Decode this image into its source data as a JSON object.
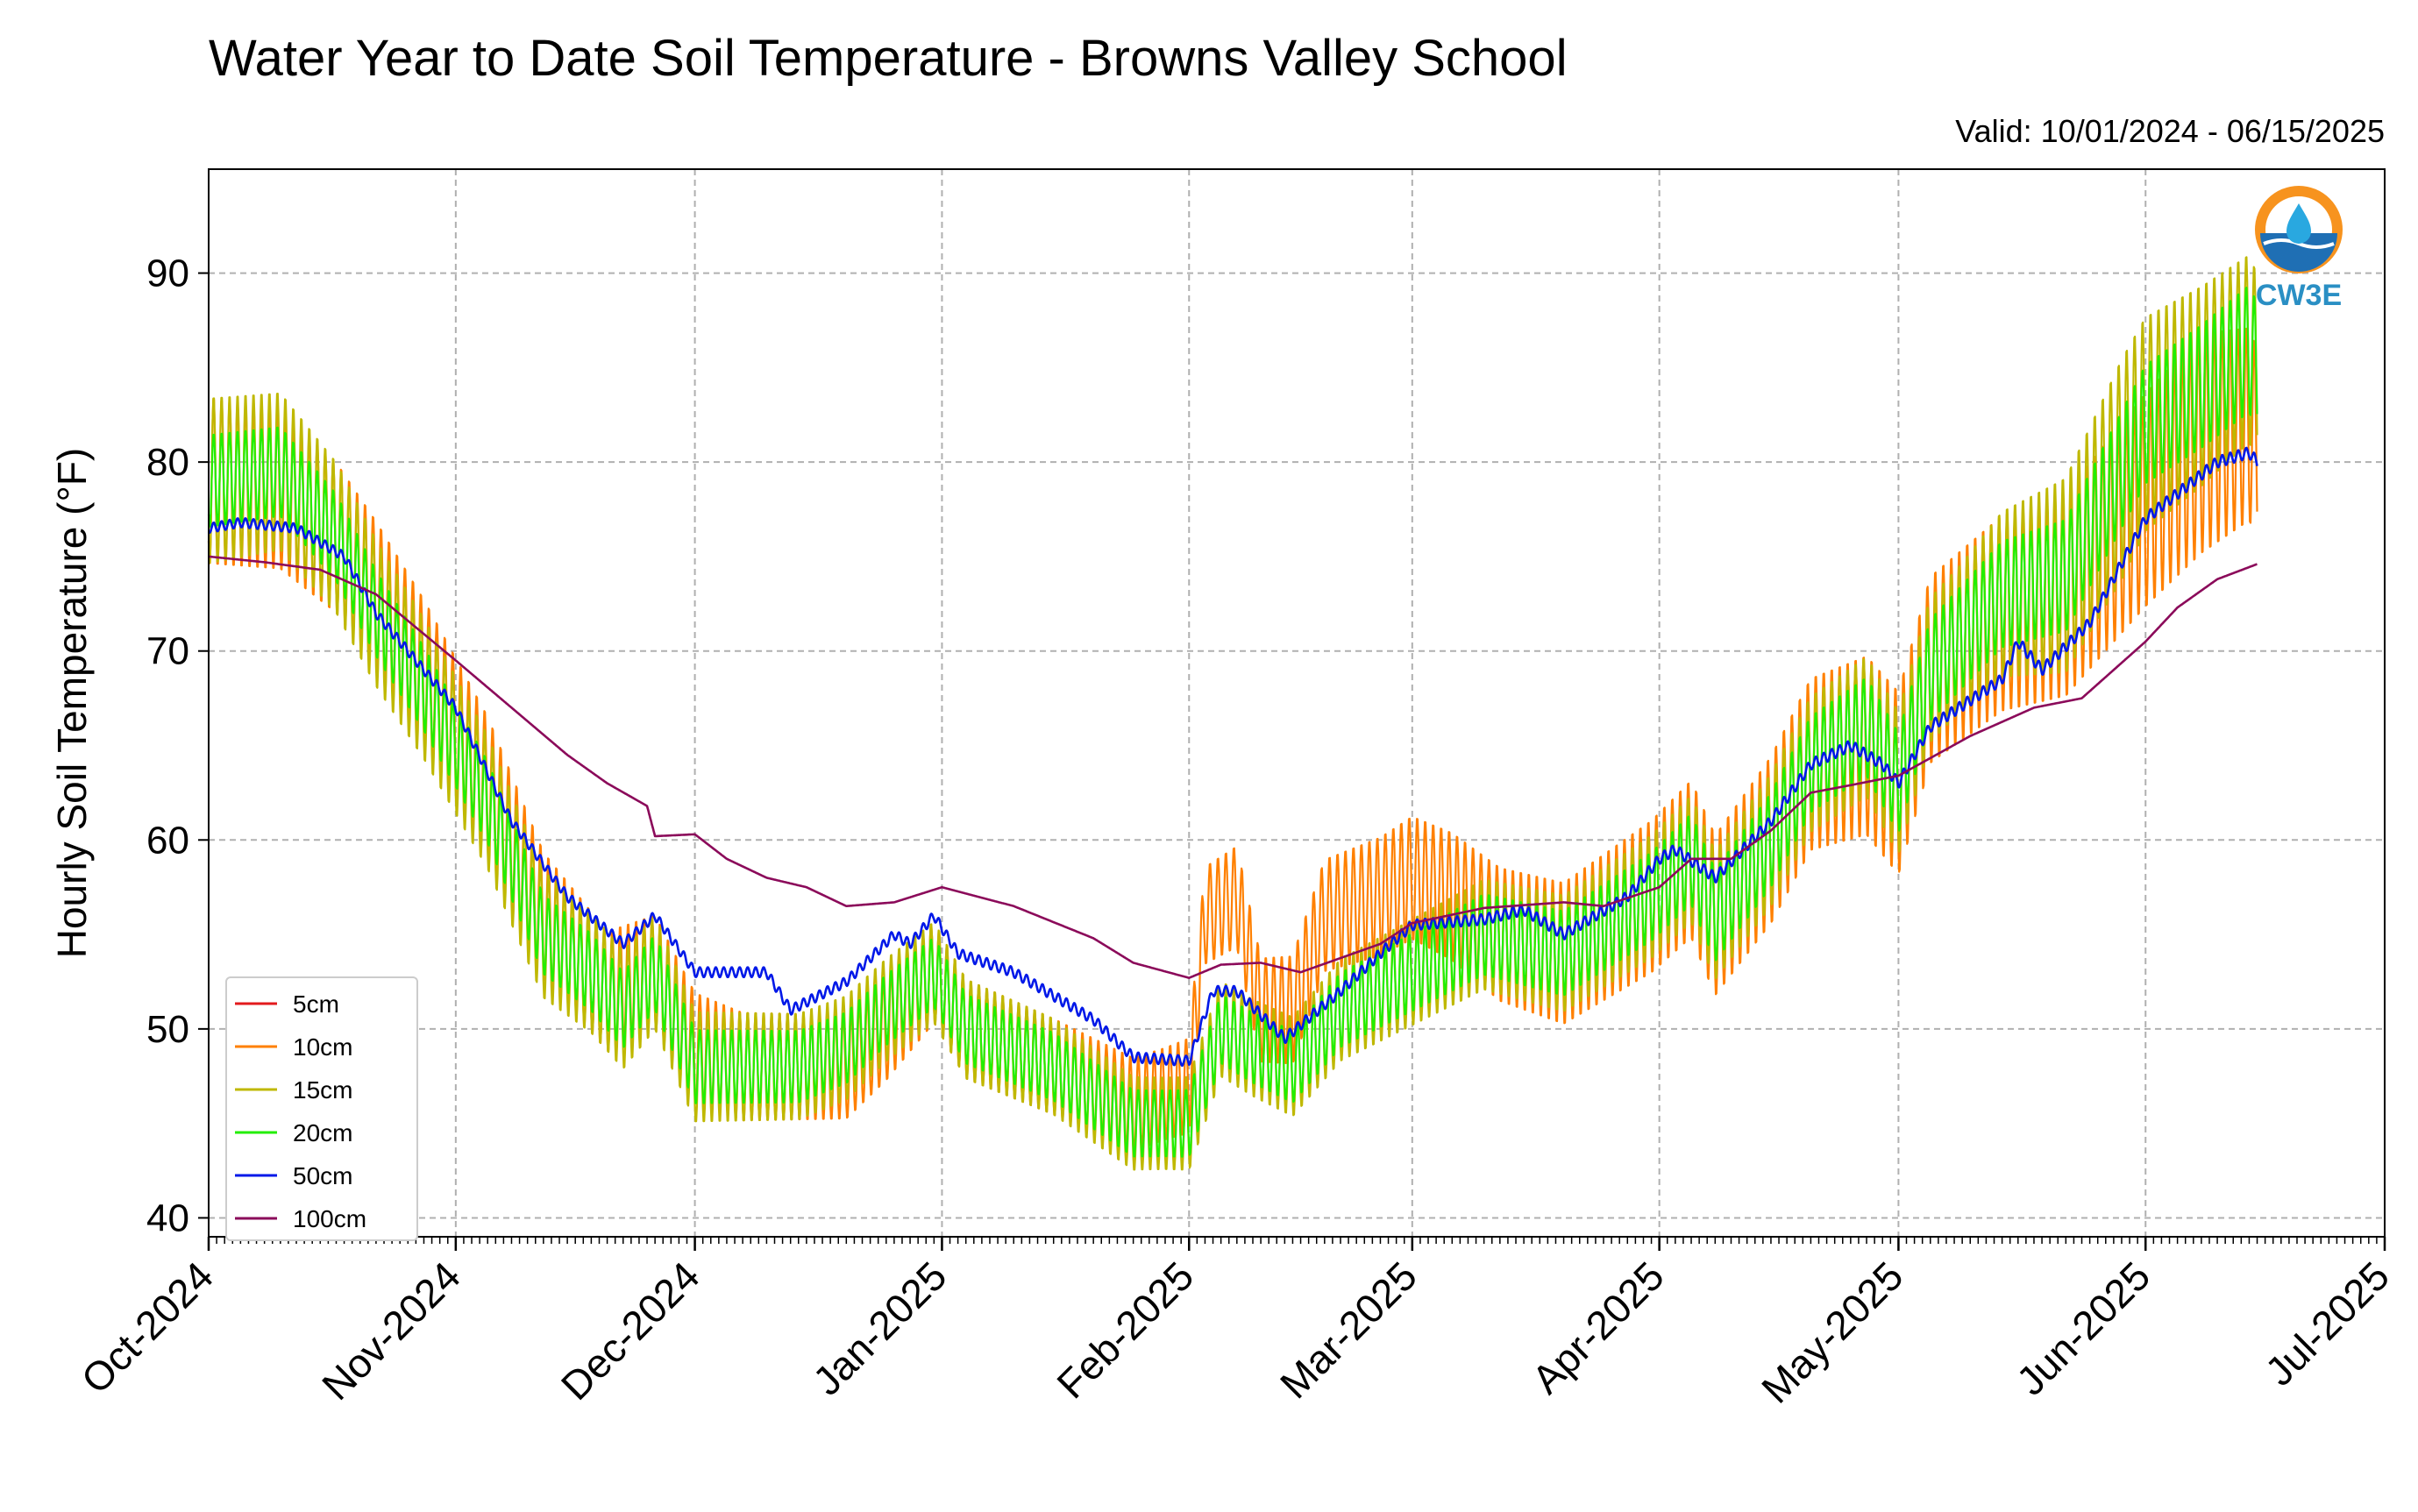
{
  "chart_data": {
    "type": "line",
    "title": "Water Year to Date Soil Temperature - Browns Valley School",
    "subtitle": "Valid: 10/01/2024 - 06/15/2025",
    "ylabel": "Hourly Soil Temperature (°F)",
    "xlabel": "",
    "ylim": [
      39,
      95.5
    ],
    "yticks": [
      40,
      50,
      60,
      70,
      80,
      90
    ],
    "xlim": [
      "2024-10-01",
      "2025-07-01"
    ],
    "xtick_labels": [
      "Oct-2024",
      "Nov-2024",
      "Dec-2024",
      "Jan-2025",
      "Feb-2025",
      "Mar-2025",
      "Apr-2025",
      "May-2025",
      "Jun-2025",
      "Jul-2025"
    ],
    "xtick_dates": [
      "2024-10-01",
      "2024-11-01",
      "2024-12-01",
      "2025-01-01",
      "2025-02-01",
      "2025-03-01",
      "2025-04-01",
      "2025-05-01",
      "2025-06-01",
      "2025-07-01"
    ],
    "grid": true,
    "legend_position": "lower-left",
    "logo_text": "CW3E",
    "series": [
      {
        "name": "5cm",
        "color": "#e31a1c",
        "points": [
          [
            "2024-10-01",
            79
          ]
        ]
      },
      {
        "name": "10cm",
        "color": "#ff8000",
        "amplitude": [
          [
            0,
            4.5
          ],
          [
            60,
            3
          ],
          [
            120,
            2.5
          ],
          [
            250,
            6
          ],
          [
            258,
            5
          ]
        ],
        "points": [
          [
            "2024-10-01",
            79
          ],
          [
            "2024-10-10",
            78.5
          ],
          [
            "2024-10-17",
            76
          ],
          [
            "2024-10-22",
            73
          ],
          [
            "2024-10-28",
            69
          ],
          [
            "2024-11-05",
            63
          ],
          [
            "2024-11-12",
            56
          ],
          [
            "2024-11-20",
            52
          ],
          [
            "2024-11-26",
            53
          ],
          [
            "2024-12-01",
            49
          ],
          [
            "2024-12-07",
            48
          ],
          [
            "2024-12-14",
            48
          ],
          [
            "2024-12-20",
            48
          ],
          [
            "2024-12-25",
            50
          ],
          [
            "2024-12-31",
            53
          ],
          [
            "2025-01-04",
            50
          ],
          [
            "2025-01-15",
            48
          ],
          [
            "2025-01-25",
            46
          ],
          [
            "2025-02-01",
            47
          ],
          [
            "2025-02-03",
            56
          ],
          [
            "2025-02-07",
            57
          ],
          [
            "2025-02-10",
            51
          ],
          [
            "2025-02-14",
            51
          ],
          [
            "2025-02-18",
            56
          ],
          [
            "2025-02-25",
            57
          ],
          [
            "2025-03-01",
            58
          ],
          [
            "2025-03-06",
            57
          ],
          [
            "2025-03-12",
            55
          ],
          [
            "2025-03-20",
            54
          ],
          [
            "2025-03-31",
            57
          ],
          [
            "2025-04-05",
            59
          ],
          [
            "2025-04-08",
            56
          ],
          [
            "2025-04-15",
            60
          ],
          [
            "2025-04-20",
            64
          ],
          [
            "2025-04-27",
            65
          ],
          [
            "2025-05-01",
            63
          ],
          [
            "2025-05-05",
            69
          ],
          [
            "2025-05-14",
            72
          ],
          [
            "2025-05-22",
            73
          ],
          [
            "2025-06-01",
            78
          ],
          [
            "2025-06-08",
            81
          ],
          [
            "2025-06-14",
            82
          ],
          [
            "2025-06-15",
            81
          ]
        ]
      },
      {
        "name": "15cm",
        "color": "#bfb800",
        "amplitude": [
          [
            0,
            4.5
          ],
          [
            60,
            3
          ],
          [
            120,
            2.5
          ],
          [
            160,
            3
          ],
          [
            220,
            4
          ],
          [
            240,
            6
          ],
          [
            258,
            5
          ]
        ],
        "points": [
          [
            "2024-10-01",
            79
          ],
          [
            "2024-10-10",
            79.5
          ],
          [
            "2024-10-17",
            76
          ],
          [
            "2024-10-22",
            72
          ],
          [
            "2024-10-28",
            68
          ],
          [
            "2024-11-05",
            62
          ],
          [
            "2024-11-12",
            55
          ],
          [
            "2024-11-18",
            53
          ],
          [
            "2024-11-22",
            51
          ],
          [
            "2024-11-26",
            53
          ],
          [
            "2024-12-01",
            48
          ],
          [
            "2024-12-07",
            48
          ],
          [
            "2024-12-14",
            48
          ],
          [
            "2024-12-20",
            49
          ],
          [
            "2024-12-25",
            51
          ],
          [
            "2024-12-31",
            53
          ],
          [
            "2025-01-04",
            50
          ],
          [
            "2025-01-15",
            48
          ],
          [
            "2025-01-25",
            45
          ],
          [
            "2025-02-01",
            45
          ],
          [
            "2025-02-05",
            50
          ],
          [
            "2025-02-09",
            49
          ],
          [
            "2025-02-14",
            48
          ],
          [
            "2025-02-20",
            51
          ],
          [
            "2025-03-01",
            53
          ],
          [
            "2025-03-10",
            55
          ],
          [
            "2025-03-20",
            54
          ],
          [
            "2025-03-31",
            57
          ],
          [
            "2025-04-05",
            59
          ],
          [
            "2025-04-08",
            56
          ],
          [
            "2025-04-15",
            60
          ],
          [
            "2025-04-20",
            64
          ],
          [
            "2025-04-27",
            66
          ],
          [
            "2025-05-01",
            63
          ],
          [
            "2025-05-05",
            69
          ],
          [
            "2025-05-14",
            73
          ],
          [
            "2025-05-22",
            74
          ],
          [
            "2025-06-01",
            82
          ],
          [
            "2025-06-08",
            84
          ],
          [
            "2025-06-14",
            86
          ],
          [
            "2025-06-15",
            85
          ]
        ]
      },
      {
        "name": "20cm",
        "color": "#22ee00",
        "amplitude": [
          [
            0,
            2.5
          ],
          [
            60,
            2
          ],
          [
            120,
            1.8
          ],
          [
            220,
            2.8
          ],
          [
            258,
            3.5
          ]
        ],
        "points": [
          [
            "2024-10-01",
            79
          ],
          [
            "2024-10-10",
            79.5
          ],
          [
            "2024-10-17",
            76
          ],
          [
            "2024-10-22",
            72
          ],
          [
            "2024-10-28",
            68
          ],
          [
            "2024-11-05",
            62
          ],
          [
            "2024-11-12",
            55
          ],
          [
            "2024-11-18",
            53
          ],
          [
            "2024-11-22",
            51
          ],
          [
            "2024-11-26",
            53
          ],
          [
            "2024-12-01",
            48
          ],
          [
            "2024-12-07",
            48
          ],
          [
            "2024-12-14",
            48
          ],
          [
            "2024-12-20",
            49
          ],
          [
            "2024-12-25",
            51
          ],
          [
            "2024-12-31",
            53
          ],
          [
            "2025-01-04",
            50
          ],
          [
            "2025-01-15",
            48
          ],
          [
            "2025-01-25",
            45
          ],
          [
            "2025-02-01",
            45
          ],
          [
            "2025-02-05",
            50
          ],
          [
            "2025-02-09",
            49
          ],
          [
            "2025-02-14",
            48
          ],
          [
            "2025-02-20",
            51
          ],
          [
            "2025-03-01",
            53
          ],
          [
            "2025-03-10",
            55
          ],
          [
            "2025-03-20",
            54
          ],
          [
            "2025-03-31",
            57
          ],
          [
            "2025-04-05",
            59
          ],
          [
            "2025-04-08",
            56
          ],
          [
            "2025-04-15",
            60
          ],
          [
            "2025-04-20",
            64
          ],
          [
            "2025-04-27",
            66
          ],
          [
            "2025-05-01",
            63
          ],
          [
            "2025-05-05",
            69
          ],
          [
            "2025-05-14",
            73
          ],
          [
            "2025-05-22",
            74
          ],
          [
            "2025-06-01",
            82
          ],
          [
            "2025-06-08",
            84
          ],
          [
            "2025-06-14",
            86
          ],
          [
            "2025-06-15",
            85
          ]
        ]
      },
      {
        "name": "50cm",
        "color": "#0018e8",
        "amplitude": [
          [
            0,
            0.25
          ],
          [
            258,
            0.3
          ]
        ],
        "points": [
          [
            "2024-10-01",
            76.5
          ],
          [
            "2024-10-05",
            76.8
          ],
          [
            "2024-10-12",
            76.5
          ],
          [
            "2024-10-18",
            75
          ],
          [
            "2024-10-22",
            72
          ],
          [
            "2024-10-28",
            69
          ],
          [
            "2024-11-01",
            67
          ],
          [
            "2024-11-08",
            61
          ],
          [
            "2024-11-15",
            57
          ],
          [
            "2024-11-22",
            54.5
          ],
          [
            "2024-11-26",
            56
          ],
          [
            "2024-12-01",
            53
          ],
          [
            "2024-12-10",
            53
          ],
          [
            "2024-12-13",
            51
          ],
          [
            "2024-12-20",
            52.5
          ],
          [
            "2024-12-26",
            55
          ],
          [
            "2024-12-28",
            54.5
          ],
          [
            "2024-12-31",
            56
          ],
          [
            "2025-01-03",
            54
          ],
          [
            "2025-01-10",
            53
          ],
          [
            "2025-01-20",
            50.5
          ],
          [
            "2025-01-25",
            48.5
          ],
          [
            "2025-02-01",
            48.3
          ],
          [
            "2025-02-04",
            52
          ],
          [
            "2025-02-07",
            52
          ],
          [
            "2025-02-13",
            49.5
          ],
          [
            "2025-02-20",
            52
          ],
          [
            "2025-02-25",
            54
          ],
          [
            "2025-03-01",
            55.5
          ],
          [
            "2025-03-10",
            55.8
          ],
          [
            "2025-03-15",
            56.3
          ],
          [
            "2025-03-20",
            55
          ],
          [
            "2025-03-28",
            57
          ],
          [
            "2025-04-01",
            59
          ],
          [
            "2025-04-03",
            59.5
          ],
          [
            "2025-04-08",
            58
          ],
          [
            "2025-04-15",
            61
          ],
          [
            "2025-04-20",
            64
          ],
          [
            "2025-04-25",
            65
          ],
          [
            "2025-04-29",
            64
          ],
          [
            "2025-05-01",
            63
          ],
          [
            "2025-05-05",
            66
          ],
          [
            "2025-05-14",
            68.5
          ],
          [
            "2025-05-16",
            70.5
          ],
          [
            "2025-05-19",
            69
          ],
          [
            "2025-05-25",
            71.5
          ],
          [
            "2025-06-01",
            77
          ],
          [
            "2025-06-10",
            80
          ],
          [
            "2025-06-14",
            80.5
          ],
          [
            "2025-06-15",
            80
          ]
        ]
      },
      {
        "name": "100cm",
        "color": "#8b0a5a",
        "amplitude": [
          [
            0,
            0
          ],
          [
            258,
            0
          ]
        ],
        "points": [
          [
            "2024-10-01",
            75
          ],
          [
            "2024-10-08",
            74.7
          ],
          [
            "2024-10-15",
            74.3
          ],
          [
            "2024-10-22",
            73
          ],
          [
            "2024-11-01",
            69.5
          ],
          [
            "2024-11-08",
            67
          ],
          [
            "2024-11-15",
            64.5
          ],
          [
            "2024-11-20",
            63
          ],
          [
            "2024-11-25",
            61.8
          ],
          [
            "2024-11-26",
            60.2
          ],
          [
            "2024-12-01",
            60.3
          ],
          [
            "2024-12-05",
            59
          ],
          [
            "2024-12-10",
            58
          ],
          [
            "2024-12-15",
            57.5
          ],
          [
            "2024-12-20",
            56.5
          ],
          [
            "2024-12-26",
            56.7
          ],
          [
            "2025-01-01",
            57.5
          ],
          [
            "2025-01-10",
            56.5
          ],
          [
            "2025-01-20",
            54.8
          ],
          [
            "2025-01-25",
            53.5
          ],
          [
            "2025-02-01",
            52.7
          ],
          [
            "2025-02-05",
            53.4
          ],
          [
            "2025-02-10",
            53.5
          ],
          [
            "2025-02-15",
            53
          ],
          [
            "2025-02-25",
            54.5
          ],
          [
            "2025-03-01",
            55.6
          ],
          [
            "2025-03-10",
            56.4
          ],
          [
            "2025-03-20",
            56.7
          ],
          [
            "2025-03-25",
            56.5
          ],
          [
            "2025-04-01",
            57.5
          ],
          [
            "2025-04-05",
            59
          ],
          [
            "2025-04-10",
            59
          ],
          [
            "2025-04-15",
            60.5
          ],
          [
            "2025-04-20",
            62.5
          ],
          [
            "2025-04-25",
            62.9
          ],
          [
            "2025-05-01",
            63.4
          ],
          [
            "2025-05-10",
            65.5
          ],
          [
            "2025-05-18",
            67
          ],
          [
            "2025-05-24",
            67.5
          ],
          [
            "2025-06-01",
            70.5
          ],
          [
            "2025-06-05",
            72.3
          ],
          [
            "2025-06-10",
            73.8
          ],
          [
            "2025-06-15",
            74.6
          ]
        ]
      }
    ]
  }
}
